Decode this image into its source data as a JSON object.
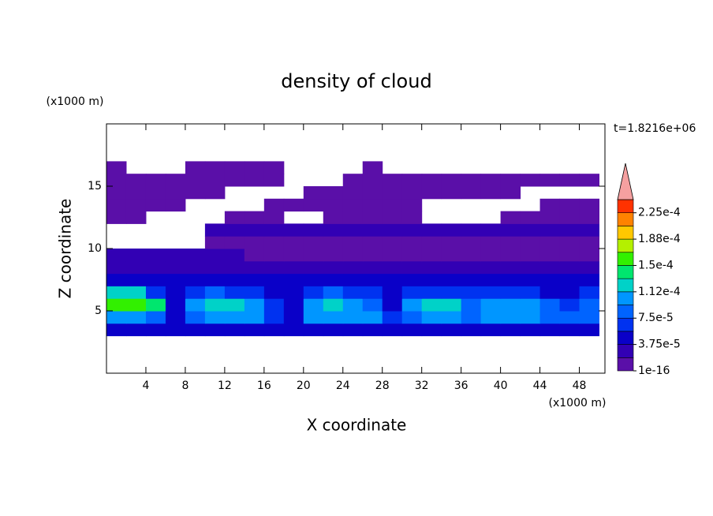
{
  "chart_data": {
    "type": "contour",
    "title": "density of cloud",
    "y_unit_label": "(x1000 m)",
    "x_unit_label": "(x1000 m)",
    "time_label": "t=1.8216e+06",
    "xlabel": "X coordinate",
    "ylabel": "Z coordinate",
    "xlim": [
      0,
      50.6
    ],
    "ylim": [
      0,
      20
    ],
    "xticks": [
      4,
      8,
      12,
      16,
      20,
      24,
      28,
      32,
      36,
      40,
      44,
      48
    ],
    "yticks": [
      5,
      10,
      15
    ],
    "x": [
      1,
      3,
      5,
      7,
      9,
      11,
      13,
      15,
      17,
      19,
      21,
      23,
      25,
      27,
      29,
      31,
      33,
      35,
      37,
      39,
      41,
      43,
      45,
      47,
      49
    ],
    "y": [
      0.5,
      1.5,
      2.5,
      3.5,
      4.5,
      5.5,
      6.5,
      7.5,
      8.5,
      9.5,
      10.5,
      11.5,
      12.5,
      13.5,
      14.5,
      15.5,
      16.5,
      17.5,
      18.5,
      19.5
    ],
    "z": [
      [
        null,
        null,
        null,
        null,
        null,
        null,
        null,
        null,
        null,
        null,
        null,
        null,
        null,
        null,
        null,
        null,
        null,
        null,
        null,
        null,
        null,
        null,
        null,
        null,
        null
      ],
      [
        null,
        null,
        null,
        null,
        null,
        null,
        null,
        null,
        null,
        null,
        null,
        null,
        null,
        null,
        null,
        null,
        null,
        null,
        null,
        null,
        null,
        null,
        null,
        null,
        null
      ],
      [
        null,
        null,
        null,
        null,
        null,
        null,
        null,
        null,
        null,
        null,
        null,
        null,
        null,
        null,
        null,
        null,
        null,
        null,
        null,
        null,
        null,
        null,
        null,
        null,
        null
      ],
      [
        4e-05,
        4e-05,
        4e-05,
        4e-05,
        4e-05,
        4e-05,
        4e-05,
        4e-05,
        4e-05,
        4e-05,
        4e-05,
        4e-05,
        4e-05,
        4e-05,
        4e-05,
        4e-05,
        4e-05,
        4e-05,
        4e-05,
        4e-05,
        4e-05,
        4e-05,
        4e-05,
        4e-05,
        4e-05
      ],
      [
        0.0001,
        0.0001,
        9e-05,
        4e-05,
        9e-05,
        0.0001,
        0.0001,
        0.0001,
        6e-05,
        5e-05,
        0.0001,
        0.0001,
        0.00011,
        0.0001,
        6e-05,
        9e-05,
        0.00011,
        0.00011,
        9e-05,
        0.0001,
        0.00011,
        0.0001,
        9e-05,
        8e-05,
        9e-05
      ],
      [
        0.00016,
        0.00016,
        0.00014,
        5e-05,
        0.00011,
        0.00012,
        0.00012,
        0.0001,
        6e-05,
        5e-05,
        0.00011,
        0.00012,
        0.00011,
        9e-05,
        5e-05,
        0.00011,
        0.00013,
        0.00012,
        9e-05,
        0.0001,
        0.00011,
        0.00011,
        9e-05,
        7e-05,
        8e-05
      ],
      [
        0.00012,
        0.00013,
        6e-05,
        4e-05,
        7e-05,
        8e-05,
        7e-05,
        6e-05,
        5e-05,
        4e-05,
        7e-05,
        8e-05,
        7e-05,
        6e-05,
        4e-05,
        6e-05,
        7e-05,
        7e-05,
        6e-05,
        6e-05,
        7e-05,
        6e-05,
        5e-05,
        5e-05,
        6e-05
      ],
      [
        4e-05,
        4e-05,
        4e-05,
        4e-05,
        4e-05,
        4e-05,
        4e-05,
        4e-05,
        4e-05,
        4e-05,
        4e-05,
        4e-05,
        4e-05,
        4e-05,
        4e-05,
        4e-05,
        4e-05,
        4e-05,
        4e-05,
        4e-05,
        4e-05,
        4e-05,
        4e-05,
        4e-05,
        4e-05
      ],
      [
        2.5e-05,
        2.5e-05,
        2.5e-05,
        2.5e-05,
        2.5e-05,
        2.5e-05,
        2.5e-05,
        2.5e-05,
        2.5e-05,
        2.5e-05,
        2.5e-05,
        2.5e-05,
        2.5e-05,
        2.5e-05,
        2.5e-05,
        2.5e-05,
        2.5e-05,
        2.5e-05,
        2.5e-05,
        2.5e-05,
        2.5e-05,
        2.5e-05,
        2.5e-05,
        2.5e-05,
        2.5e-05
      ],
      [
        2e-05,
        2e-05,
        2e-05,
        2e-05,
        2e-05,
        2e-05,
        2e-05,
        1.5e-05,
        1.5e-05,
        1.5e-05,
        1.5e-05,
        1.5e-05,
        1.5e-05,
        1.5e-05,
        1.5e-05,
        1.5e-05,
        1.5e-05,
        1.5e-05,
        1.5e-05,
        1.5e-05,
        1.5e-05,
        1.5e-05,
        1.5e-05,
        1.5e-05,
        1.5e-05
      ],
      [
        null,
        null,
        null,
        null,
        null,
        1e-05,
        1e-05,
        1e-05,
        1e-05,
        1e-05,
        1e-05,
        1e-05,
        1e-05,
        1e-05,
        1e-05,
        1e-05,
        1e-05,
        1e-05,
        1e-05,
        1e-05,
        1e-05,
        1e-05,
        1e-05,
        1e-05,
        1e-05
      ],
      [
        null,
        null,
        null,
        null,
        null,
        2e-05,
        2e-05,
        2e-05,
        2e-05,
        2e-05,
        2e-05,
        2e-05,
        2e-05,
        2e-05,
        2e-05,
        2e-05,
        2e-05,
        2e-05,
        2e-05,
        2e-05,
        2e-05,
        2e-05,
        2e-05,
        2e-05,
        2e-05
      ],
      [
        1e-05,
        1e-05,
        null,
        null,
        null,
        null,
        1e-05,
        1e-05,
        1e-05,
        null,
        null,
        1e-05,
        1e-05,
        1e-05,
        1e-05,
        1e-05,
        null,
        null,
        null,
        null,
        1e-05,
        1e-05,
        1e-05,
        1e-05,
        1e-05
      ],
      [
        1e-05,
        1e-05,
        1e-05,
        1e-05,
        null,
        null,
        null,
        null,
        1e-05,
        1e-05,
        1e-05,
        1e-05,
        1e-05,
        1e-05,
        1e-05,
        1e-05,
        null,
        null,
        null,
        null,
        null,
        null,
        1e-05,
        1e-05,
        1e-05
      ],
      [
        1e-05,
        1e-05,
        1e-05,
        1e-05,
        1e-05,
        1e-05,
        null,
        null,
        null,
        null,
        1e-05,
        1e-05,
        1e-05,
        1e-05,
        1e-05,
        1e-05,
        1e-05,
        1e-05,
        1e-05,
        1e-05,
        1e-05,
        null,
        null,
        null,
        null
      ],
      [
        1e-05,
        1e-05,
        1e-05,
        1e-05,
        1e-05,
        1e-05,
        1e-05,
        1e-05,
        1e-05,
        null,
        null,
        null,
        1e-05,
        1e-05,
        1e-05,
        1e-05,
        1e-05,
        1e-05,
        1e-05,
        1e-05,
        1e-05,
        1e-05,
        1e-05,
        1e-05,
        1e-05
      ],
      [
        1e-05,
        null,
        null,
        null,
        1e-05,
        1e-05,
        1e-05,
        1e-05,
        1e-05,
        null,
        null,
        null,
        null,
        1e-05,
        null,
        null,
        null,
        null,
        null,
        null,
        null,
        null,
        null,
        null,
        null
      ],
      [
        null,
        null,
        null,
        null,
        null,
        null,
        null,
        null,
        null,
        null,
        null,
        null,
        null,
        null,
        null,
        null,
        null,
        null,
        null,
        null,
        null,
        null,
        null,
        null,
        null
      ],
      [
        null,
        null,
        null,
        null,
        null,
        null,
        null,
        null,
        null,
        null,
        null,
        null,
        null,
        null,
        null,
        null,
        null,
        null,
        null,
        null,
        null,
        null,
        null,
        null,
        null
      ],
      [
        null,
        null,
        null,
        null,
        null,
        null,
        null,
        null,
        null,
        null,
        null,
        null,
        null,
        null,
        null,
        null,
        null,
        null,
        null,
        null,
        null,
        null,
        null,
        null,
        null
      ]
    ],
    "levels": [
      1e-16,
      1.875e-05,
      3.75e-05,
      5.625e-05,
      7.5e-05,
      9.375e-05,
      0.0001125,
      0.00013125,
      0.00015,
      0.00016875,
      0.0001875,
      0.00020625,
      0.000225,
      0.00024375
    ],
    "level_colors": [
      "#5a0fa8",
      "#3200b4",
      "#0a00c8",
      "#0032f0",
      "#0064ff",
      "#0096ff",
      "#00d2c8",
      "#00e66e",
      "#32f000",
      "#b4f000",
      "#ffc800",
      "#ff8200",
      "#ff3200"
    ],
    "over_color": "#f5a0a0",
    "colorbar_ticks": [
      {
        "value": 1e-16,
        "label": "1e-16"
      },
      {
        "value": 3.75e-05,
        "label": "3.75e-5"
      },
      {
        "value": 7.5e-05,
        "label": "7.5e-5"
      },
      {
        "value": 0.0001125,
        "label": "1.12e-4"
      },
      {
        "value": 0.00015,
        "label": "1.5e-4"
      },
      {
        "value": 0.0001875,
        "label": "1.88e-4"
      },
      {
        "value": 0.000225,
        "label": "2.25e-4"
      }
    ]
  }
}
